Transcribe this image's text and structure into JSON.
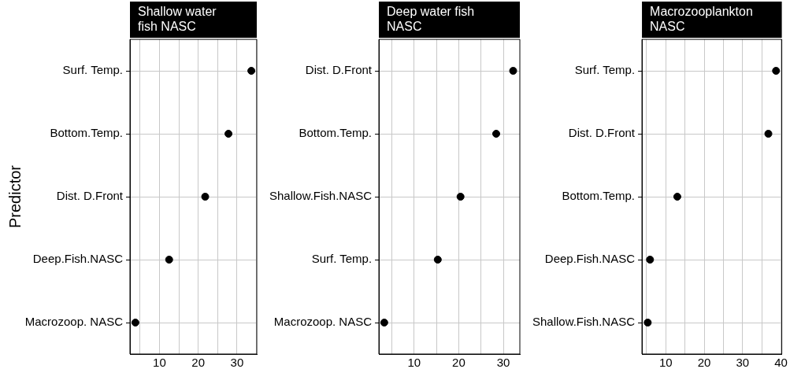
{
  "chart_data": [
    {
      "type": "scatter",
      "title": "Shallow water fish NASC",
      "ylabel": "Predictor",
      "orientation": "horizontal",
      "categories": [
        "Surf. Temp.",
        "Bottom.Temp.",
        "Dist. D.Front",
        "Deep.Fish.NASC",
        "Macrozoop. NASC"
      ],
      "values": [
        33.7,
        27.8,
        21.8,
        12.5,
        3.8
      ],
      "color": "#000000",
      "marker": "circle",
      "xlim": [
        2.4,
        35.1
      ],
      "xticks": [
        {
          "value": 5,
          "label": null
        },
        10,
        {
          "value": 15,
          "label": null
        },
        20,
        {
          "value": 25,
          "label": null
        },
        30,
        {
          "value": 35,
          "label": null
        }
      ],
      "grid": true
    },
    {
      "type": "scatter",
      "title": "Deep water fish NASC",
      "orientation": "horizontal",
      "categories": [
        "Dist. D.Front",
        "Bottom.Temp.",
        "Shallow.Fish.NASC",
        "Surf. Temp.",
        "Macrozoop. NASC"
      ],
      "values": [
        32.2,
        28.4,
        20.4,
        15.3,
        3.3
      ],
      "color": "#000000",
      "marker": "circle",
      "xlim": [
        2.1,
        33.7
      ],
      "xticks": [
        {
          "value": 5,
          "label": null
        },
        10,
        {
          "value": 15,
          "label": null
        },
        20,
        {
          "value": 25,
          "label": null
        },
        30
      ],
      "grid": true
    },
    {
      "type": "scatter",
      "title": "Macrozooplankton NASC",
      "orientation": "horizontal",
      "categories": [
        "Surf. Temp.",
        "Dist. D.Front",
        "Bottom.Temp.",
        "Deep.Fish.NASC",
        "Shallow.Fish.NASC"
      ],
      "values": [
        38.7,
        36.7,
        13.0,
        5.9,
        5.3
      ],
      "color": "#000000",
      "marker": "circle",
      "xlim": [
        3.8,
        40.2
      ],
      "xticks": [
        {
          "value": 5,
          "label": null
        },
        10,
        {
          "value": 15,
          "label": null
        },
        20,
        {
          "value": 25,
          "label": null
        },
        30,
        {
          "value": 35,
          "label": null
        },
        40
      ],
      "grid": true
    }
  ]
}
